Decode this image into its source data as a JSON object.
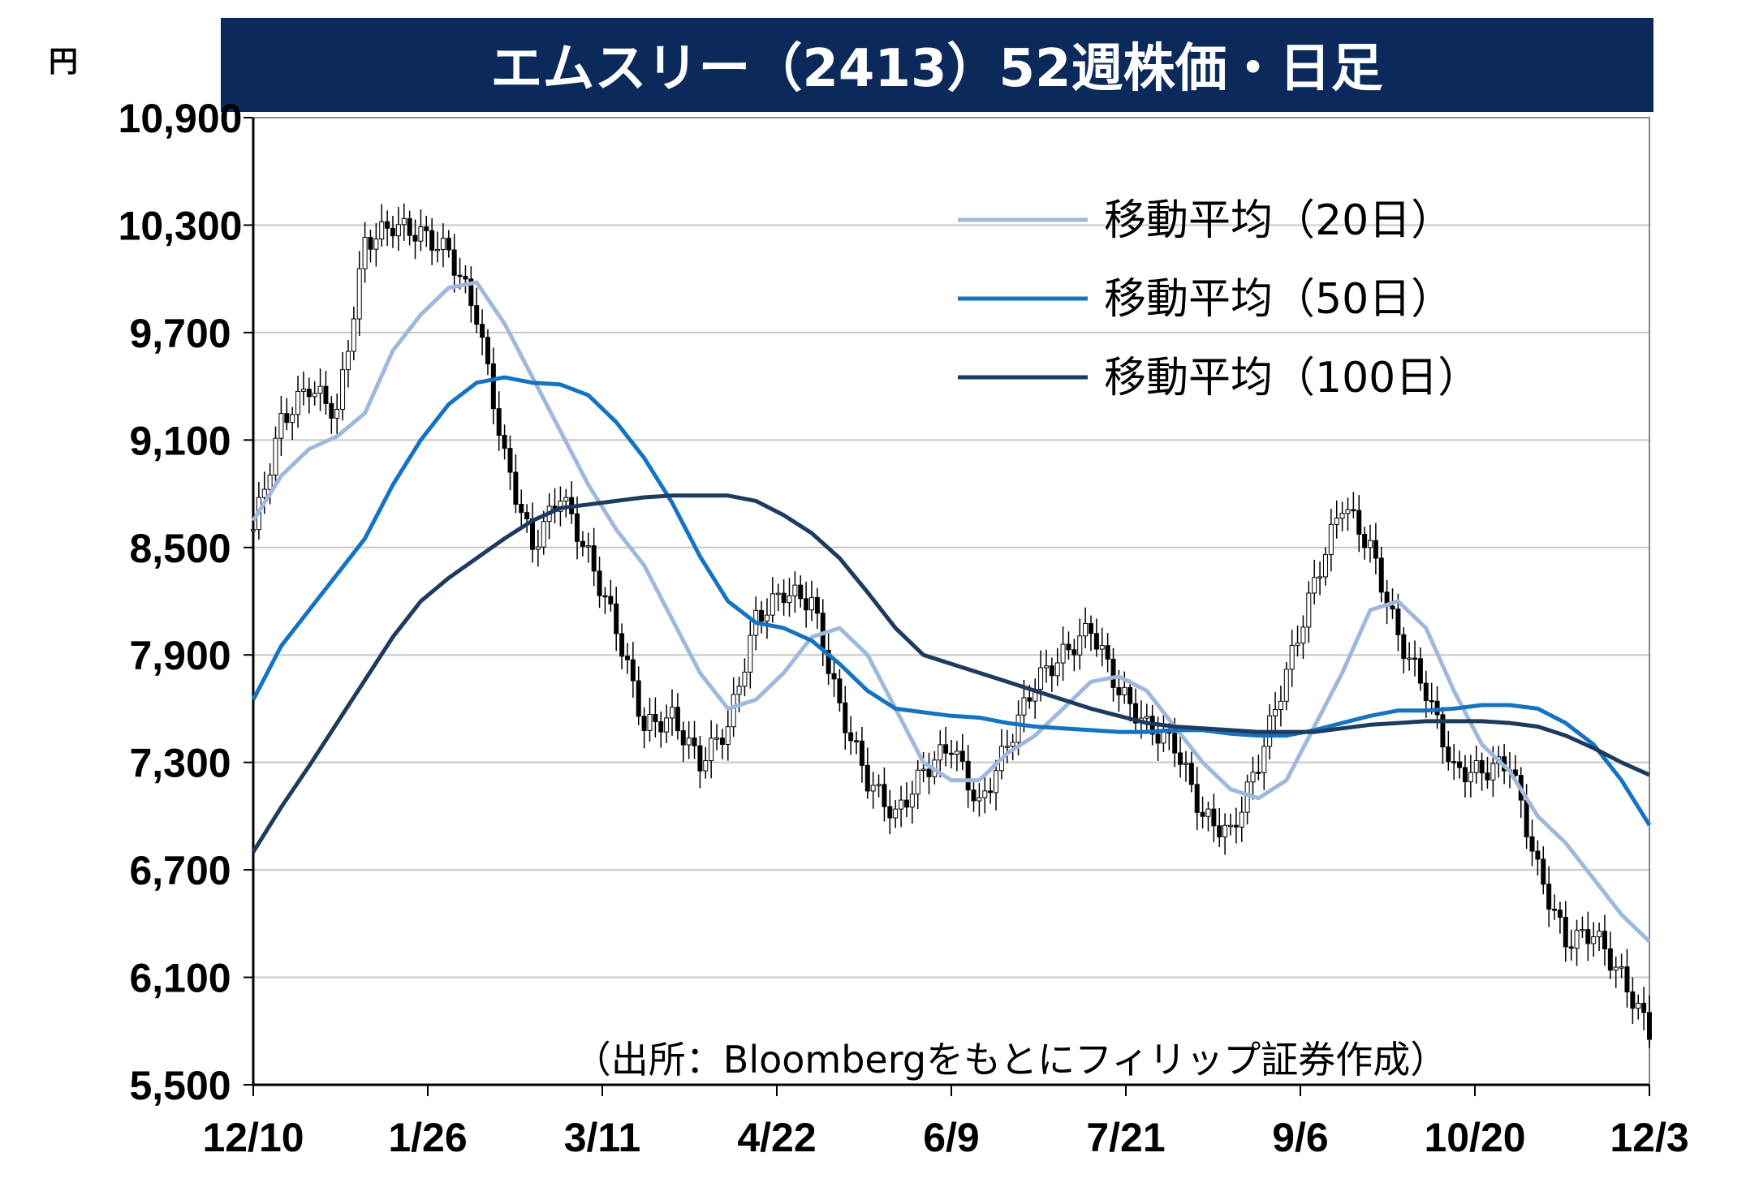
{
  "title": "エムスリー（2413）52週株価・日足",
  "unit": "円",
  "source": "（出所：Bloombergをもとにフィリップ証券作成）",
  "chart_data": {
    "type": "line",
    "ylim": [
      5500,
      10900
    ],
    "y_ticks": [
      "10,900",
      "10,300",
      "9,700",
      "9,100",
      "8,500",
      "7,900",
      "7,300",
      "6,700",
      "6,100",
      "5,500"
    ],
    "y_tick_values": [
      10900,
      10300,
      9700,
      9100,
      8500,
      7900,
      7300,
      6700,
      6100,
      5500
    ],
    "x_tick_labels": [
      "12/10",
      "1/26",
      "3/11",
      "4/22",
      "6/9",
      "7/21",
      "9/6",
      "10/20",
      "12/3"
    ],
    "grid": true,
    "legend_position": "top-right",
    "colors": {
      "ma20": "#9fb8dc",
      "ma50": "#1473c2",
      "ma100": "#1f3a5f",
      "candle": "#000000"
    },
    "series": [
      {
        "name": "移動平均（20日）",
        "x": [
          0,
          5,
          10,
          15,
          20,
          25,
          30,
          35,
          40,
          45,
          50,
          55,
          60,
          65,
          70,
          75,
          80,
          85,
          90,
          95,
          100,
          105,
          110,
          115,
          120,
          125,
          130,
          135,
          140,
          145,
          150,
          155,
          160,
          165,
          170,
          175,
          180,
          185,
          190,
          195,
          200,
          205,
          210,
          215,
          220,
          225,
          230,
          235,
          240,
          245,
          250
        ],
        "values": [
          8650,
          8900,
          9050,
          9120,
          9250,
          9600,
          9800,
          9950,
          9980,
          9750,
          9450,
          9150,
          8850,
          8600,
          8400,
          8100,
          7800,
          7600,
          7650,
          7800,
          8000,
          8050,
          7900,
          7600,
          7300,
          7200,
          7200,
          7350,
          7450,
          7600,
          7750,
          7780,
          7700,
          7500,
          7300,
          7150,
          7100,
          7200,
          7500,
          7800,
          8150,
          8200,
          8050,
          7700,
          7400,
          7250,
          7000,
          6850,
          6650,
          6450,
          6300
        ]
      },
      {
        "name": "移動平均（50日）",
        "x": [
          0,
          5,
          10,
          15,
          20,
          25,
          30,
          35,
          40,
          45,
          50,
          55,
          60,
          65,
          70,
          75,
          80,
          85,
          90,
          95,
          100,
          105,
          110,
          115,
          120,
          125,
          130,
          135,
          140,
          145,
          150,
          155,
          160,
          165,
          170,
          175,
          180,
          185,
          190,
          195,
          200,
          205,
          210,
          215,
          220,
          225,
          230,
          235,
          240,
          245,
          250
        ],
        "values": [
          7650,
          7950,
          8150,
          8350,
          8550,
          8850,
          9100,
          9300,
          9420,
          9450,
          9420,
          9410,
          9350,
          9200,
          9000,
          8750,
          8450,
          8200,
          8080,
          8050,
          7980,
          7850,
          7700,
          7600,
          7580,
          7560,
          7550,
          7520,
          7500,
          7490,
          7480,
          7470,
          7470,
          7480,
          7480,
          7460,
          7450,
          7450,
          7480,
          7520,
          7560,
          7590,
          7590,
          7600,
          7620,
          7620,
          7600,
          7520,
          7400,
          7200,
          6950
        ]
      },
      {
        "name": "移動平均（100日）",
        "x": [
          0,
          5,
          10,
          15,
          20,
          25,
          30,
          35,
          40,
          45,
          50,
          55,
          60,
          65,
          70,
          75,
          80,
          85,
          90,
          95,
          100,
          105,
          110,
          115,
          120,
          125,
          130,
          135,
          140,
          145,
          150,
          155,
          160,
          165,
          170,
          175,
          180,
          185,
          190,
          195,
          200,
          205,
          210,
          215,
          220,
          225,
          230,
          235,
          240,
          245,
          250
        ],
        "values": [
          6800,
          7050,
          7280,
          7520,
          7760,
          8000,
          8200,
          8330,
          8440,
          8550,
          8650,
          8720,
          8740,
          8760,
          8780,
          8790,
          8790,
          8790,
          8760,
          8680,
          8580,
          8440,
          8250,
          8050,
          7900,
          7850,
          7800,
          7750,
          7700,
          7650,
          7600,
          7560,
          7520,
          7500,
          7490,
          7480,
          7470,
          7470,
          7470,
          7490,
          7510,
          7520,
          7530,
          7530,
          7530,
          7520,
          7500,
          7450,
          7380,
          7300,
          7230
        ]
      }
    ],
    "candles": {
      "name": "日足",
      "x": [
        0,
        5,
        10,
        15,
        20,
        25,
        30,
        35,
        40,
        45,
        50,
        55,
        60,
        65,
        70,
        75,
        80,
        85,
        90,
        95,
        100,
        105,
        110,
        115,
        120,
        125,
        130,
        135,
        140,
        145,
        150,
        155,
        160,
        165,
        170,
        175,
        180,
        185,
        190,
        195,
        200,
        205,
        210,
        215,
        220,
        225,
        230,
        235,
        240,
        245,
        250
      ],
      "values": [
        8600,
        9200,
        9400,
        9250,
        10200,
        10300,
        10250,
        10150,
        9800,
        9000,
        8500,
        8800,
        8450,
        8050,
        7500,
        7550,
        7300,
        7500,
        8100,
        8250,
        8200,
        7600,
        7200,
        7000,
        7250,
        7400,
        7050,
        7400,
        7750,
        7900,
        8050,
        7700,
        7500,
        7400,
        7000,
        6900,
        7300,
        7800,
        8300,
        8750,
        8500,
        8000,
        7700,
        7250,
        7250,
        7300,
        6700,
        6300,
        6350,
        6100,
        5800
      ]
    }
  }
}
